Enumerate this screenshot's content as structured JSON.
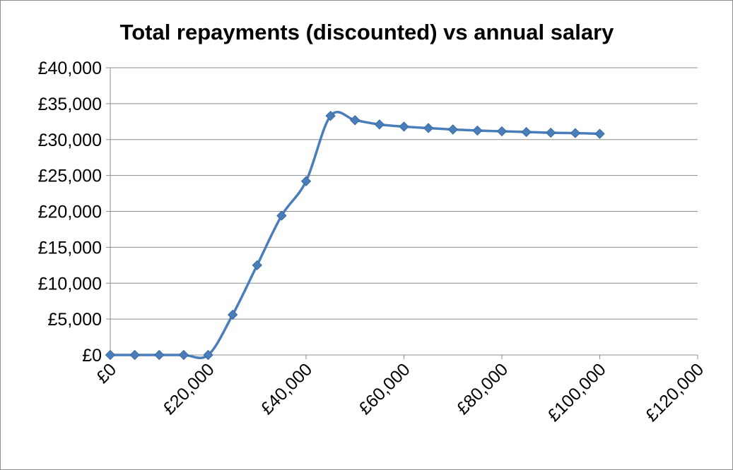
{
  "chart_data": {
    "type": "line",
    "title": "Total repayments (discounted) vs annual salary",
    "xlabel": "",
    "ylabel": "",
    "xlim": [
      0,
      120000
    ],
    "ylim": [
      0,
      40000
    ],
    "x_ticks": [
      0,
      20000,
      40000,
      60000,
      80000,
      100000,
      120000
    ],
    "x_tick_labels": [
      "£0",
      "£20,000",
      "£40,000",
      "£60,000",
      "£80,000",
      "£100,000",
      "£120,000"
    ],
    "y_ticks": [
      0,
      5000,
      10000,
      15000,
      20000,
      25000,
      30000,
      35000,
      40000
    ],
    "y_tick_labels": [
      "£0",
      "£5,000",
      "£10,000",
      "£15,000",
      "£20,000",
      "£25,000",
      "£30,000",
      "£35,000",
      "£40,000"
    ],
    "grid": "horizontal",
    "legend": "none",
    "series": [
      {
        "color": "#4a7ebb",
        "marker": "diamond",
        "smoothed": true,
        "x": [
          0,
          5000,
          10000,
          15000,
          20000,
          25000,
          30000,
          35000,
          40000,
          45000,
          50000,
          55000,
          60000,
          65000,
          70000,
          75000,
          80000,
          85000,
          90000,
          95000,
          100000
        ],
        "y": [
          0,
          0,
          0,
          0,
          0,
          5600,
          12500,
          19400,
          24200,
          33300,
          32700,
          32100,
          31800,
          31600,
          31400,
          31250,
          31150,
          31050,
          30950,
          30900,
          30800
        ]
      }
    ]
  }
}
